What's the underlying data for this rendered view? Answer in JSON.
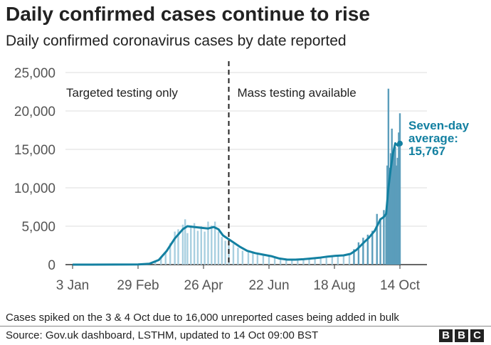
{
  "title": "Daily confirmed cases continue to rise",
  "subtitle": "Daily confirmed coronavirus cases by date reported",
  "note": "Cases spiked on the 3 & 4 Oct due to 16,000 unreported cases being added in bulk",
  "source": "Source: Gov.uk dashboard, LSTHM, updated to 14 Oct 09:00 BST",
  "logo_letters": [
    "B",
    "B",
    "C"
  ],
  "colors": {
    "bars": "#a8cfe0",
    "bars_recent": "#5b9dbb",
    "average": "#1380a1",
    "grid": "#dddddd",
    "text": "#222222"
  },
  "chart_data": {
    "type": "bar",
    "ylim": [
      0,
      25000
    ],
    "y_ticks": [
      0,
      5000,
      10000,
      15000,
      20000,
      25000
    ],
    "y_tick_labels": [
      "0",
      "5,000",
      "10,000",
      "15,000",
      "20,000",
      "25,000"
    ],
    "x_tick_labels": [
      {
        "date": "2020-01-03",
        "label": "3 Jan"
      },
      {
        "date": "2020-02-29",
        "label": "29 Feb"
      },
      {
        "date": "2020-04-26",
        "label": "26 Apr"
      },
      {
        "date": "2020-06-22",
        "label": "22 Jun"
      },
      {
        "date": "2020-08-18",
        "label": "18 Aug"
      },
      {
        "date": "2020-10-14",
        "label": "14 Oct"
      }
    ],
    "x_range": [
      "2020-01-03",
      "2020-10-14"
    ],
    "grid": true,
    "divider": {
      "date": "2020-05-18",
      "style": "dashed"
    },
    "region_labels": [
      {
        "text": "Targeted testing only",
        "side": "left"
      },
      {
        "text": "Mass testing available",
        "side": "right"
      }
    ],
    "series": [
      {
        "name": "Daily confirmed cases",
        "kind": "bar",
        "points": [
          [
            "2020-01-03",
            0
          ],
          [
            "2020-02-29",
            20
          ],
          [
            "2020-03-05",
            60
          ],
          [
            "2020-03-10",
            160
          ],
          [
            "2020-03-15",
            400
          ],
          [
            "2020-03-20",
            1000
          ],
          [
            "2020-03-24",
            1500
          ],
          [
            "2020-03-28",
            2800
          ],
          [
            "2020-04-01",
            4300
          ],
          [
            "2020-04-04",
            4600
          ],
          [
            "2020-04-08",
            5200
          ],
          [
            "2020-04-10",
            5900
          ],
          [
            "2020-04-12",
            4100
          ],
          [
            "2020-04-15",
            5100
          ],
          [
            "2020-04-18",
            5400
          ],
          [
            "2020-04-21",
            4400
          ],
          [
            "2020-04-24",
            5000
          ],
          [
            "2020-04-27",
            4300
          ],
          [
            "2020-04-30",
            5600
          ],
          [
            "2020-05-03",
            5100
          ],
          [
            "2020-05-06",
            5600
          ],
          [
            "2020-05-09",
            4300
          ],
          [
            "2020-05-12",
            3600
          ],
          [
            "2020-05-15",
            3100
          ],
          [
            "2020-05-18",
            2900
          ],
          [
            "2020-05-22",
            2700
          ],
          [
            "2020-05-26",
            2200
          ],
          [
            "2020-05-30",
            1800
          ],
          [
            "2020-06-04",
            1700
          ],
          [
            "2020-06-08",
            1600
          ],
          [
            "2020-06-12",
            1400
          ],
          [
            "2020-06-17",
            1200
          ],
          [
            "2020-06-22",
            1100
          ],
          [
            "2020-06-27",
            900
          ],
          [
            "2020-07-02",
            700
          ],
          [
            "2020-07-07",
            600
          ],
          [
            "2020-07-12",
            600
          ],
          [
            "2020-07-17",
            700
          ],
          [
            "2020-07-22",
            700
          ],
          [
            "2020-07-27",
            800
          ],
          [
            "2020-08-01",
            900
          ],
          [
            "2020-08-06",
            1000
          ],
          [
            "2020-08-11",
            1100
          ],
          [
            "2020-08-16",
            1200
          ],
          [
            "2020-08-21",
            1100
          ],
          [
            "2020-08-26",
            1300
          ],
          [
            "2020-08-31",
            1400
          ],
          [
            "2020-09-04",
            2000
          ],
          [
            "2020-09-08",
            2900
          ],
          [
            "2020-09-12",
            3500
          ],
          [
            "2020-09-16",
            3900
          ],
          [
            "2020-09-20",
            4400
          ],
          [
            "2020-09-24",
            6600
          ],
          [
            "2020-09-27",
            6000
          ],
          [
            "2020-09-30",
            7100
          ],
          [
            "2020-10-02",
            6900
          ],
          [
            "2020-10-03",
            12900
          ],
          [
            "2020-10-04",
            22900
          ],
          [
            "2020-10-05",
            12600
          ],
          [
            "2020-10-06",
            14500
          ],
          [
            "2020-10-07",
            17700
          ],
          [
            "2020-10-08",
            13900
          ],
          [
            "2020-10-09",
            15200
          ],
          [
            "2020-10-10",
            15300
          ],
          [
            "2020-10-11",
            12900
          ],
          [
            "2020-10-12",
            13900
          ],
          [
            "2020-10-13",
            17200
          ],
          [
            "2020-10-14",
            19700
          ]
        ]
      },
      {
        "name": "Seven-day average",
        "kind": "line",
        "points": [
          [
            "2020-01-03",
            0
          ],
          [
            "2020-02-29",
            20
          ],
          [
            "2020-03-10",
            120
          ],
          [
            "2020-03-18",
            600
          ],
          [
            "2020-03-25",
            1800
          ],
          [
            "2020-04-01",
            3400
          ],
          [
            "2020-04-08",
            4600
          ],
          [
            "2020-04-12",
            5000
          ],
          [
            "2020-04-18",
            4900
          ],
          [
            "2020-04-24",
            4800
          ],
          [
            "2020-04-30",
            4700
          ],
          [
            "2020-05-05",
            4900
          ],
          [
            "2020-05-09",
            4600
          ],
          [
            "2020-05-13",
            3800
          ],
          [
            "2020-05-18",
            3300
          ],
          [
            "2020-05-22",
            2900
          ],
          [
            "2020-05-28",
            2300
          ],
          [
            "2020-06-03",
            1800
          ],
          [
            "2020-06-10",
            1500
          ],
          [
            "2020-06-17",
            1300
          ],
          [
            "2020-06-24",
            1100
          ],
          [
            "2020-07-01",
            800
          ],
          [
            "2020-07-08",
            650
          ],
          [
            "2020-07-15",
            650
          ],
          [
            "2020-07-22",
            700
          ],
          [
            "2020-07-29",
            800
          ],
          [
            "2020-08-05",
            900
          ],
          [
            "2020-08-12",
            1050
          ],
          [
            "2020-08-19",
            1150
          ],
          [
            "2020-08-26",
            1200
          ],
          [
            "2020-09-01",
            1400
          ],
          [
            "2020-09-06",
            1900
          ],
          [
            "2020-09-12",
            2800
          ],
          [
            "2020-09-17",
            3500
          ],
          [
            "2020-09-22",
            4400
          ],
          [
            "2020-09-27",
            5900
          ],
          [
            "2020-09-30",
            6200
          ],
          [
            "2020-10-02",
            6600
          ],
          [
            "2020-10-04",
            10000
          ],
          [
            "2020-10-06",
            12500
          ],
          [
            "2020-10-08",
            14500
          ],
          [
            "2020-10-10",
            15800
          ],
          [
            "2020-10-12",
            15500
          ],
          [
            "2020-10-14",
            15767
          ]
        ]
      }
    ],
    "annotation": {
      "lines": [
        "Seven-day",
        "average:",
        "15,767"
      ],
      "date": "2020-10-14",
      "value": 15767
    }
  }
}
